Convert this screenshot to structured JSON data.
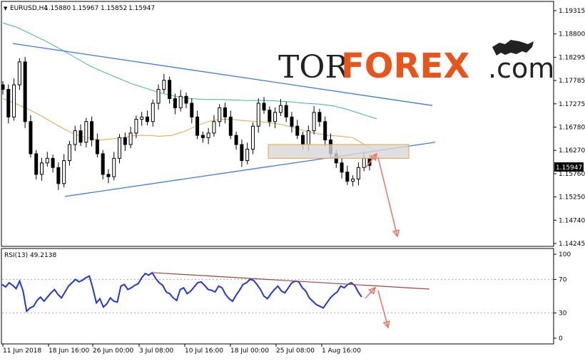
{
  "header": {
    "symbol": "EURUSD,H4",
    "open": "1.15880",
    "high": "1.15967",
    "low": "1.15852",
    "close": "1.15947"
  },
  "logo": {
    "part1": "TOR",
    "part2": "FOREX",
    "part3": ".com",
    "emblem": "bull-icon"
  },
  "price_axis": {
    "ticks": [
      "1.19315",
      "1.18800",
      "1.18295",
      "1.17785",
      "1.17275",
      "1.16780",
      "1.16270",
      "1.15760",
      "1.15250",
      "1.14740",
      "1.14245"
    ],
    "current_price": "1.15947"
  },
  "time_axis": {
    "ticks": [
      "11 Jun 2018",
      "18 Jun 16:00",
      "26 Jun 00:00",
      "3 Jul 08:00",
      "10 Jul 16:00",
      "18 Jul 00:00",
      "25 Jul 08:00",
      "1 Aug 16:00"
    ]
  },
  "rsi_panel": {
    "label": "RSI(13) 49.2138",
    "ticks": [
      "100",
      "70",
      "30",
      "0"
    ]
  },
  "colors": {
    "candle": "#000000",
    "ma_fast": "#e8a33c",
    "ma_slow": "#3cb8a0",
    "trendline": "#3a7be0",
    "zone_fill": "#d7d7d7",
    "zone_border": "#e8a33c",
    "arrow": "#f07060",
    "rsi_line": "#1f36e0",
    "rsi_trend": "#a0463c",
    "logo_orange": "#e8541a"
  },
  "chart_data": [
    {
      "type": "candlestick",
      "title": "EURUSD,H4",
      "ylim": [
        1.14245,
        1.196
      ],
      "close_approx": [
        1.176,
        1.17,
        1.177,
        1.182,
        1.169,
        1.162,
        1.1575,
        1.16,
        1.161,
        1.159,
        1.1555,
        1.1605,
        1.164,
        1.167,
        1.1645,
        1.169,
        1.165,
        1.162,
        1.1575,
        1.157,
        1.161,
        1.1655,
        1.164,
        1.1665,
        1.1695,
        1.17,
        1.169,
        1.173,
        1.176,
        1.178,
        1.174,
        1.172,
        1.1745,
        1.173,
        1.17,
        1.166,
        1.1655,
        1.1665,
        1.169,
        1.172,
        1.17,
        1.166,
        1.164,
        1.1605,
        1.163,
        1.168,
        1.173,
        1.1715,
        1.169,
        1.171,
        1.1725,
        1.17,
        1.168,
        1.166,
        1.164,
        1.167,
        1.171,
        1.169,
        1.165,
        1.162,
        1.16,
        1.158,
        1.156,
        1.1565,
        1.159,
        1.161,
        1.15947
      ],
      "series": [
        {
          "name": "",
          "kind": "moving-average",
          "color": "#e8a33c",
          "values": [
            1.174,
            1.173,
            1.1718,
            1.1705,
            1.169,
            1.1675,
            1.1662,
            1.1655,
            1.165,
            1.1652,
            1.1655,
            1.166,
            1.166,
            1.1658,
            1.166,
            1.1668,
            1.168,
            1.169,
            1.1695,
            1.1695,
            1.1692,
            1.169,
            1.1688,
            1.1684,
            1.1678,
            1.167,
            1.1664,
            1.166,
            1.1658,
            1.1655,
            1.164,
            1.1625
          ]
        },
        {
          "name": "",
          "kind": "moving-average",
          "color": "#3cb8a0",
          "values": [
            1.1905,
            1.1895,
            1.188,
            1.1865,
            1.1848,
            1.183,
            1.1812,
            1.1798,
            1.1785,
            1.1772,
            1.1762,
            1.1752,
            1.1745,
            1.174,
            1.1738,
            1.1738,
            1.1737,
            1.1736,
            1.1736,
            1.1735,
            1.1733,
            1.173,
            1.1728,
            1.1724,
            1.1716,
            1.1706,
            1.1696
          ]
        }
      ],
      "trendlines": [
        {
          "kind": "resistance",
          "from": [
            "11 Jun 2018",
            1.186
          ],
          "to": [
            "1 Aug 16:00",
            1.1725
          ]
        },
        {
          "kind": "support",
          "from": [
            "18 Jun 16:00",
            1.1527
          ],
          "to": [
            "1 Aug 16:00",
            1.1645
          ]
        }
      ],
      "zone": {
        "from_price": 1.161,
        "to_price": 1.164
      },
      "forecast_arrows": [
        "up-then-down"
      ]
    },
    {
      "type": "line",
      "title": "RSI(13) 49.2138",
      "ylim": [
        0,
        100
      ],
      "values": [
        64,
        61,
        66,
        63,
        59,
        68,
        56,
        32,
        36,
        38,
        45,
        49,
        44,
        49,
        54,
        58,
        52,
        48,
        55,
        62,
        66,
        70,
        67,
        69,
        72,
        74,
        59,
        42,
        47,
        37,
        41,
        48,
        44,
        43,
        62,
        64,
        58,
        60,
        63,
        65,
        72,
        77,
        75,
        78,
        71,
        66,
        63,
        55,
        53,
        48,
        45,
        58,
        60,
        53,
        56,
        61,
        66,
        67,
        63,
        58,
        57,
        55,
        62,
        60,
        52,
        47,
        44,
        51,
        57,
        64,
        66,
        70,
        69,
        64,
        58,
        50,
        47,
        53,
        58,
        62,
        56,
        54,
        60,
        66,
        68,
        67,
        60,
        56,
        48,
        44,
        40,
        38,
        36,
        42,
        48,
        52,
        55,
        62,
        60,
        64,
        66,
        63,
        55,
        49
      ],
      "trendline": {
        "from": 78,
        "to": 58
      }
    }
  ]
}
